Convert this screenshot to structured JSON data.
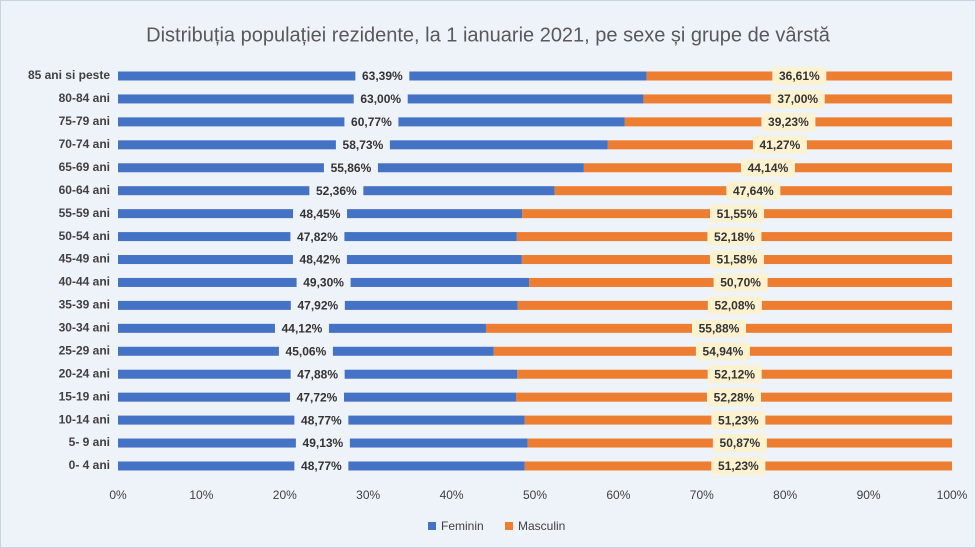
{
  "chart_data": {
    "type": "stacked-bar-horizontal",
    "title": "Distribuția populației rezidente, la 1 ianuarie 2021, pe sexe și grupe de vârstă",
    "categories": [
      "85 ani si peste",
      "80-84 ani",
      "75-79 ani",
      "70-74 ani",
      "65-69 ani",
      "60-64 ani",
      "55-59 ani",
      "50-54 ani",
      "45-49 ani",
      "40-44 ani",
      "35-39 ani",
      "30-34 ani",
      "25-29 ani",
      "20-24 ani",
      "15-19 ani",
      "10-14 ani",
      "5- 9 ani",
      "0- 4 ani"
    ],
    "series": [
      {
        "name": "Feminin",
        "color": "#4472c4",
        "values": [
          63.39,
          63.0,
          60.77,
          58.73,
          55.86,
          52.36,
          48.45,
          47.82,
          48.42,
          49.3,
          47.92,
          44.12,
          45.06,
          47.88,
          47.72,
          48.77,
          49.13,
          48.77
        ],
        "value_labels": [
          "63,39%",
          "63,00%",
          "60,77%",
          "58,73%",
          "55,86%",
          "52,36%",
          "48,45%",
          "47,82%",
          "48,42%",
          "49,30%",
          "47,92%",
          "44,12%",
          "45,06%",
          "47,88%",
          "47,72%",
          "48,77%",
          "49,13%",
          "48,77%"
        ]
      },
      {
        "name": "Masculin",
        "color": "#ed7d31",
        "values": [
          36.61,
          37.0,
          39.23,
          41.27,
          44.14,
          47.64,
          51.55,
          52.18,
          51.58,
          50.7,
          52.08,
          55.88,
          54.94,
          52.12,
          52.28,
          51.23,
          50.87,
          51.23
        ],
        "value_labels": [
          "36,61%",
          "37,00%",
          "39,23%",
          "41,27%",
          "44,14%",
          "47,64%",
          "51,55%",
          "52,18%",
          "51,58%",
          "50,70%",
          "52,08%",
          "55,88%",
          "54,94%",
          "52,12%",
          "52,28%",
          "51,23%",
          "50,87%",
          "51,23%"
        ]
      }
    ],
    "xlim": [
      0,
      100
    ],
    "xticks": [
      {
        "value": 0,
        "label": "0%"
      },
      {
        "value": 10,
        "label": "10%"
      },
      {
        "value": 20,
        "label": "20%"
      },
      {
        "value": 30,
        "label": "30%"
      },
      {
        "value": 40,
        "label": "40%"
      },
      {
        "value": 50,
        "label": "50%"
      },
      {
        "value": 60,
        "label": "60%"
      },
      {
        "value": 70,
        "label": "70%"
      },
      {
        "value": 80,
        "label": "80%"
      },
      {
        "value": 90,
        "label": "90%"
      },
      {
        "value": 100,
        "label": "100%"
      }
    ],
    "legend": "bottom"
  }
}
